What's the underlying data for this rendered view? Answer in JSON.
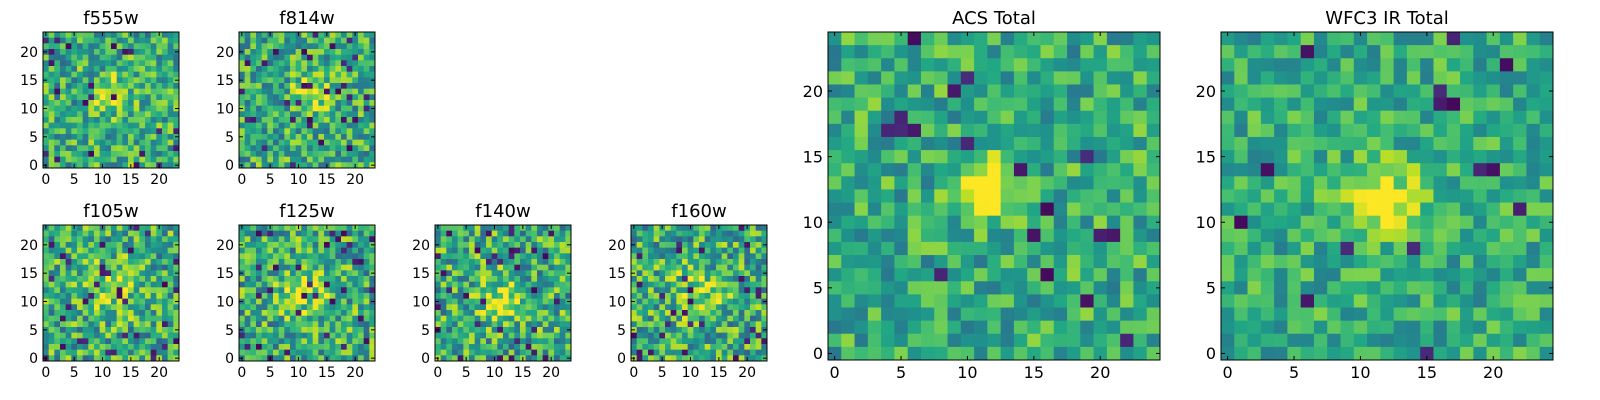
{
  "figure": {
    "colormap": "viridis",
    "colors": {
      "background": "#ffffff",
      "axis": "#000000",
      "cmap_low": "#440154",
      "cmap_high": "#fde725"
    }
  },
  "panels": [
    {
      "id": "f555w",
      "title": "f555w",
      "size": "small",
      "x_ticks": [
        "0",
        "5",
        "10",
        "15",
        "20"
      ],
      "y_ticks": [
        "0",
        "5",
        "10",
        "15",
        "20"
      ],
      "extent": [
        0,
        24
      ],
      "grid_n": 24,
      "seed": 555,
      "source": [
        11.5,
        12.5
      ],
      "source_amp": 0.35,
      "source_sigma": 2.2,
      "noise": 0.55,
      "dark_frac": 0.04
    },
    {
      "id": "f814w",
      "title": "f814w",
      "size": "small",
      "x_ticks": [
        "0",
        "5",
        "10",
        "15",
        "20"
      ],
      "y_ticks": [
        "0",
        "5",
        "10",
        "15",
        "20"
      ],
      "extent": [
        0,
        24
      ],
      "grid_n": 24,
      "seed": 814,
      "source": [
        12.5,
        12.5
      ],
      "source_amp": 0.35,
      "source_sigma": 2.2,
      "noise": 0.55,
      "dark_frac": 0.04
    },
    {
      "id": "acs",
      "title": "ACS Total",
      "size": "large",
      "x_ticks": [
        "0",
        "5",
        "10",
        "15",
        "20"
      ],
      "y_ticks": [
        "0",
        "5",
        "10",
        "15",
        "20"
      ],
      "extent": [
        0,
        24
      ],
      "grid_n": 25,
      "seed": 101,
      "source": [
        11.5,
        12.5
      ],
      "source_amp": 0.55,
      "source_sigma": 1.6,
      "noise": 0.45,
      "dark_frac": 0.03
    },
    {
      "id": "wfc3",
      "title": "WFC3 IR Total",
      "size": "large",
      "x_ticks": [
        "0",
        "5",
        "10",
        "15",
        "20"
      ],
      "y_ticks": [
        "0",
        "5",
        "10",
        "15",
        "20"
      ],
      "extent": [
        0,
        24
      ],
      "grid_n": 25,
      "seed": 202,
      "source": [
        11.5,
        11.5
      ],
      "source_amp": 0.45,
      "source_sigma": 2.0,
      "noise": 0.4,
      "dark_frac": 0.04
    },
    {
      "id": "f105w",
      "title": "f105w",
      "size": "small",
      "x_ticks": [
        "0",
        "5",
        "10",
        "15",
        "20"
      ],
      "y_ticks": [
        "0",
        "5",
        "10",
        "15",
        "20"
      ],
      "extent": [
        0,
        24
      ],
      "grid_n": 24,
      "seed": 105,
      "source": [
        11.5,
        12.5
      ],
      "source_amp": 0.25,
      "source_sigma": 3.0,
      "noise": 0.6,
      "dark_frac": 0.05
    },
    {
      "id": "f125w",
      "title": "f125w",
      "size": "small",
      "x_ticks": [
        "0",
        "5",
        "10",
        "15",
        "20"
      ],
      "y_ticks": [
        "0",
        "5",
        "10",
        "15",
        "20"
      ],
      "extent": [
        0,
        24
      ],
      "grid_n": 24,
      "seed": 125,
      "source": [
        11.5,
        11.5
      ],
      "source_amp": 0.25,
      "source_sigma": 3.0,
      "noise": 0.6,
      "dark_frac": 0.05
    },
    {
      "id": "f140w",
      "title": "f140w",
      "size": "small",
      "x_ticks": [
        "0",
        "5",
        "10",
        "15",
        "20"
      ],
      "y_ticks": [
        "0",
        "5",
        "10",
        "15",
        "20"
      ],
      "extent": [
        0,
        24
      ],
      "grid_n": 24,
      "seed": 140,
      "source": [
        11.5,
        10.5
      ],
      "source_amp": 0.25,
      "source_sigma": 3.0,
      "noise": 0.6,
      "dark_frac": 0.05
    },
    {
      "id": "f160w",
      "title": "f160w",
      "size": "small",
      "x_ticks": [
        "0",
        "5",
        "10",
        "15",
        "20"
      ],
      "y_ticks": [
        "0",
        "5",
        "10",
        "15",
        "20"
      ],
      "extent": [
        0,
        24
      ],
      "grid_n": 24,
      "seed": 160,
      "source": [
        11.5,
        11.5
      ],
      "source_amp": 0.25,
      "source_sigma": 3.0,
      "noise": 0.6,
      "dark_frac": 0.05
    }
  ]
}
